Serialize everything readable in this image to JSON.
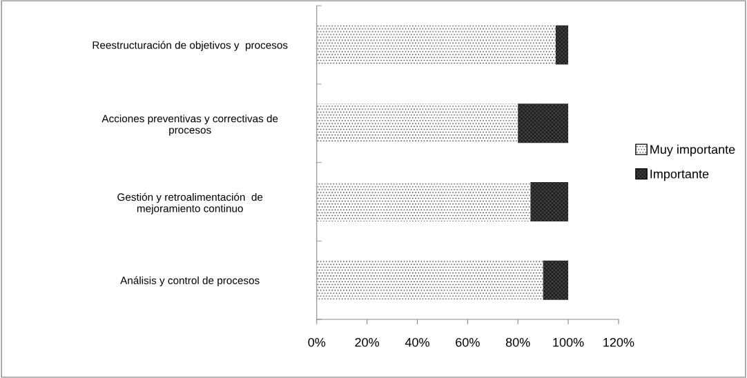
{
  "chart_data": {
    "type": "bar",
    "orientation": "horizontal",
    "stacked": true,
    "categories": [
      "Reestructuración de objetivos y  procesos",
      "Acciones preventivas y correctivas de\nprocesos",
      "Gestión y retroalimentación  de\nmejoramiento continuo",
      "Análisis y control de procesos"
    ],
    "series": [
      {
        "name": "Muy importante",
        "color": "#ffffff",
        "values": [
          95,
          80,
          85,
          90
        ]
      },
      {
        "name": "Importante",
        "color": "#404040",
        "values": [
          5,
          20,
          15,
          10
        ]
      }
    ],
    "xlim": [
      0,
      120
    ],
    "xticks": [
      {
        "value": 0,
        "label": "0%"
      },
      {
        "value": 20,
        "label": "20%"
      },
      {
        "value": 40,
        "label": "40%"
      },
      {
        "value": 60,
        "label": "60%"
      },
      {
        "value": 80,
        "label": "80%"
      },
      {
        "value": 100,
        "label": "100%"
      },
      {
        "value": 120,
        "label": "120%"
      }
    ],
    "grid": false,
    "legend": "right"
  }
}
